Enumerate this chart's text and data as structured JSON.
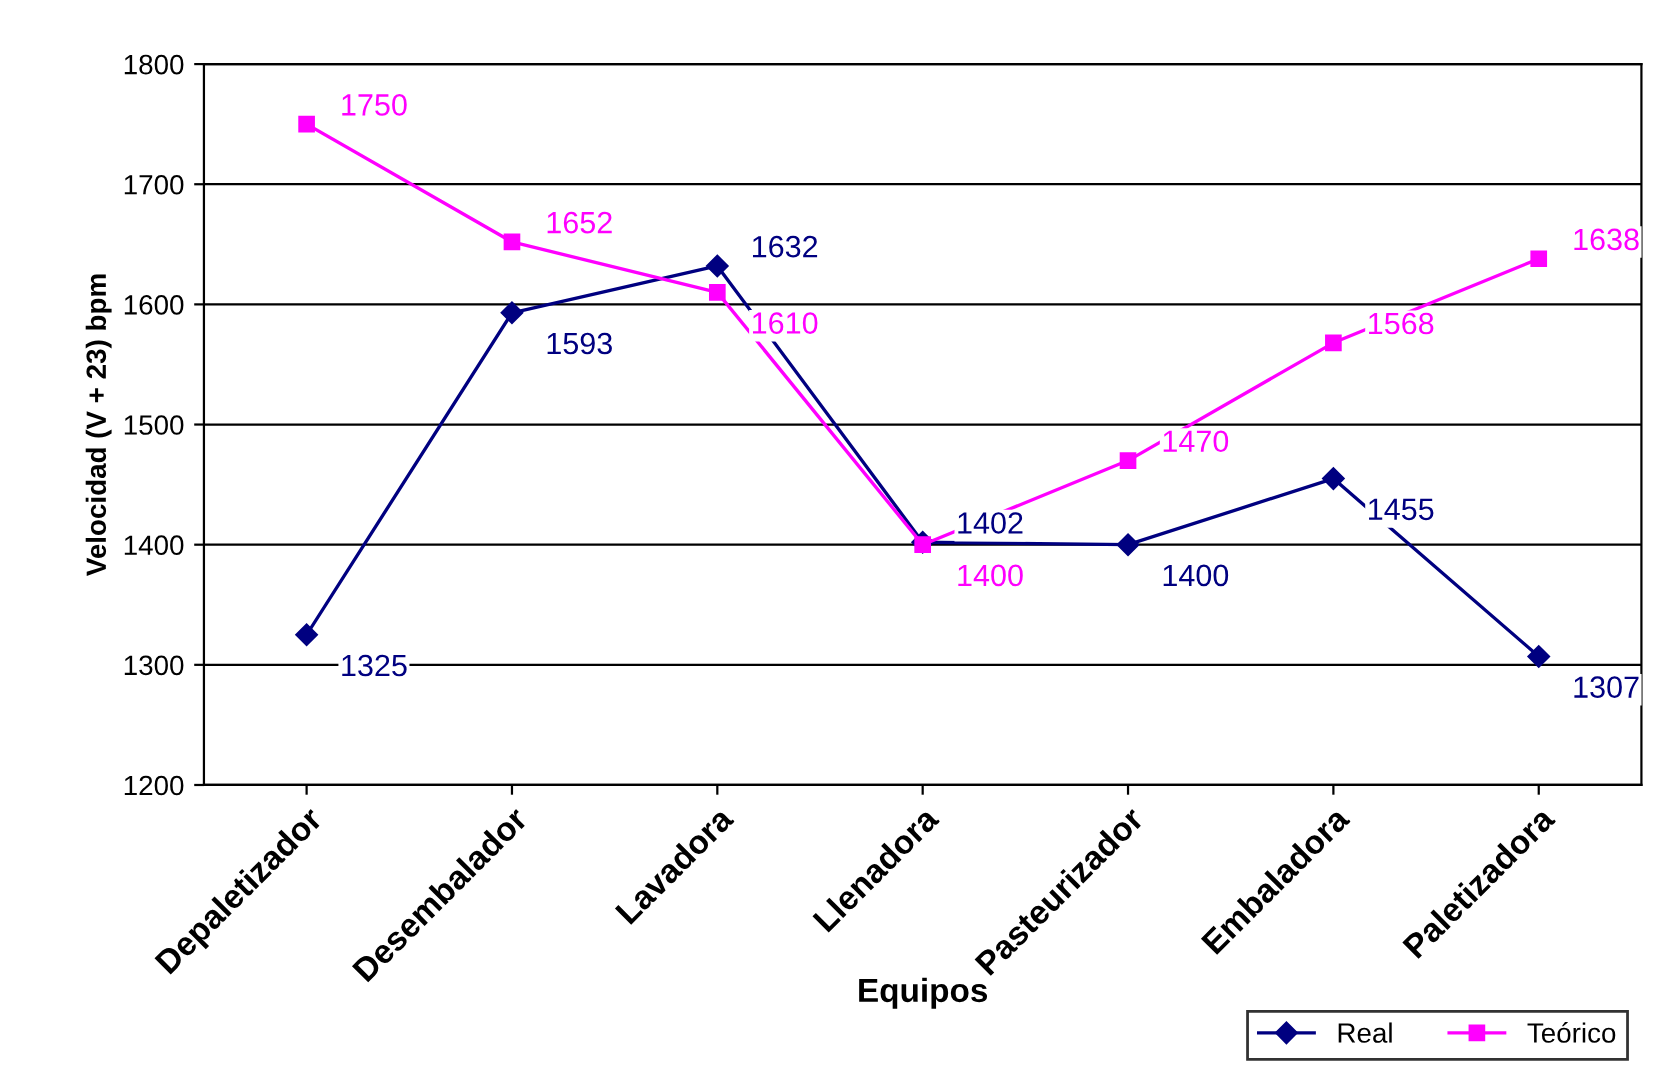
{
  "chart_data": {
    "type": "line",
    "xlabel": "Equipos",
    "ylabel": "Velocidad (V + 23) bpm",
    "categories": [
      "Depaletizador",
      "Desembalador",
      "Lavadora",
      "Llenadora",
      "Pasteurizador",
      "Embaladora",
      "Paletizadora"
    ],
    "series": [
      {
        "name": "Real",
        "color": "#000080",
        "values": [
          1325,
          1593,
          1632,
          1402,
          1400,
          1455,
          1307
        ],
        "marker": "diamond"
      },
      {
        "name": "Teórico",
        "color": "#ff00ff",
        "values": [
          1750,
          1652,
          1610,
          1400,
          1470,
          1568,
          1638
        ],
        "marker": "square"
      }
    ],
    "ylim": [
      1200,
      1800
    ],
    "yticks": [
      1200,
      1300,
      1400,
      1500,
      1600,
      1700,
      1800
    ],
    "grid": "y",
    "legend": "bottom right",
    "data_labels": true,
    "line_style": "solid"
  }
}
